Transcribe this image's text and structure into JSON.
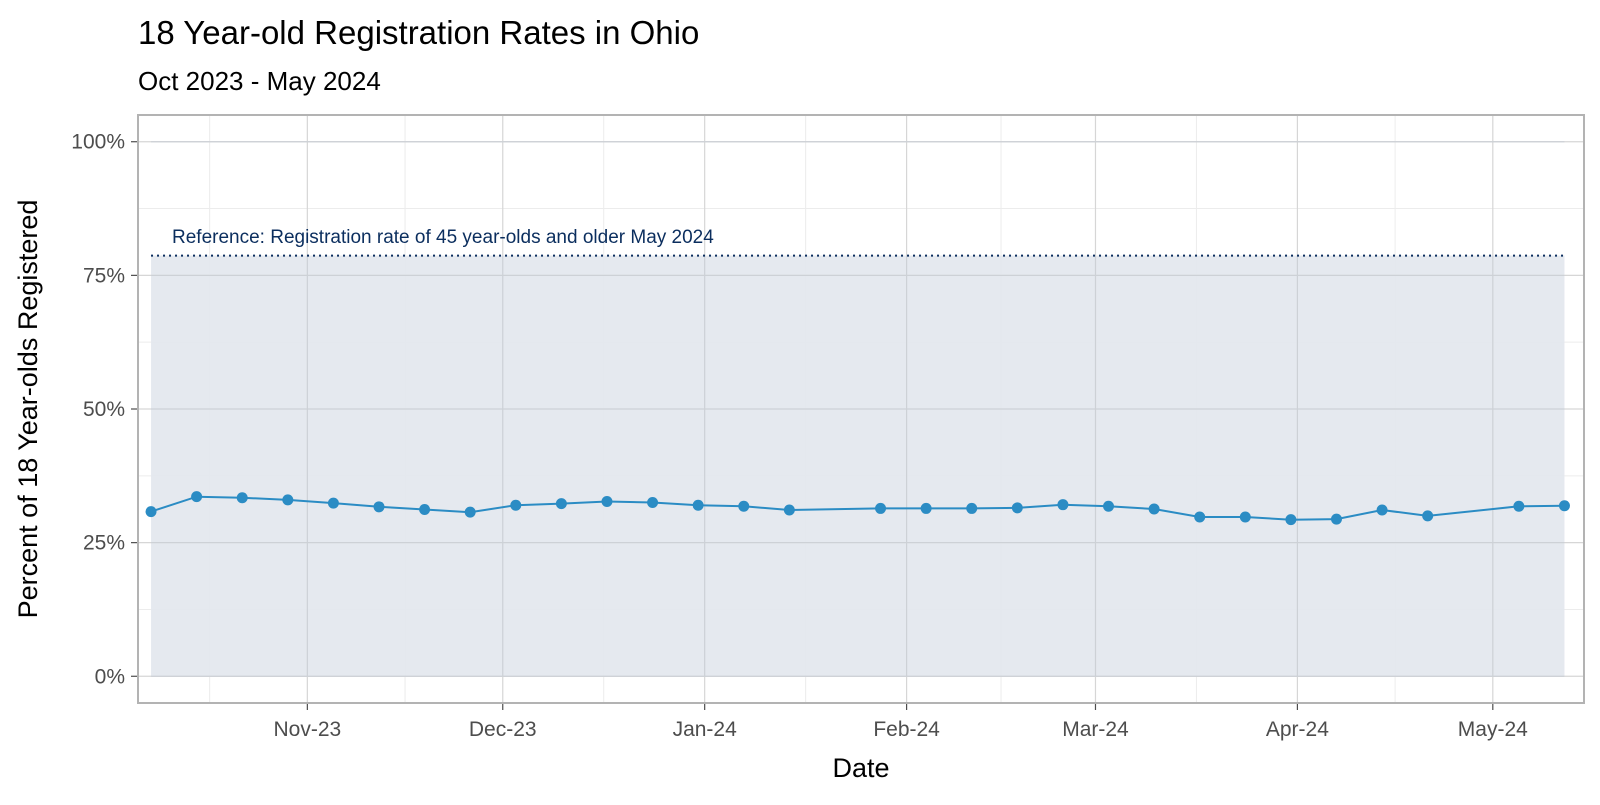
{
  "chart_data": {
    "type": "line",
    "title": "18 Year-old Registration Rates in Ohio",
    "subtitle": "Oct 2023 - May 2024",
    "xlabel": "Date",
    "ylabel": "Percent of 18 Year-olds Registered",
    "ylim": [
      -0.05,
      1.05
    ],
    "yticks": [
      {
        "value": 0,
        "label": "0%"
      },
      {
        "value": 0.25,
        "label": "25%"
      },
      {
        "value": 0.5,
        "label": "50%"
      },
      {
        "value": 0.75,
        "label": "75%"
      },
      {
        "value": 1,
        "label": "100%"
      }
    ],
    "xlim": [
      "2023-10-06",
      "2024-05-15"
    ],
    "xticks": [
      {
        "date": "2023-11-01",
        "label": "Nov-23"
      },
      {
        "date": "2023-12-01",
        "label": "Dec-23"
      },
      {
        "date": "2024-01-01",
        "label": "Jan-24"
      },
      {
        "date": "2024-02-01",
        "label": "Feb-24"
      },
      {
        "date": "2024-03-01",
        "label": "Mar-24"
      },
      {
        "date": "2024-04-01",
        "label": "Apr-24"
      },
      {
        "date": "2024-05-01",
        "label": "May-24"
      }
    ],
    "grid": true,
    "colors": {
      "series": "#2b8cc4",
      "reference": "#0b2e5e",
      "band": "#e4e8ee",
      "panel_border": "#b3b3b3"
    },
    "band": {
      "ymin": 0,
      "ymax": 0.787
    },
    "reference": {
      "value": 0.787,
      "label": "Reference: Registration rate of 45 year-olds and older May 2024"
    },
    "series": [
      {
        "x": [
          "2023-10-08",
          "2023-10-15",
          "2023-10-22",
          "2023-10-29",
          "2023-11-05",
          "2023-11-12",
          "2023-11-19",
          "2023-11-26",
          "2023-12-03",
          "2023-12-10",
          "2023-12-17",
          "2023-12-24",
          "2023-12-31",
          "2024-01-07",
          "2024-01-14",
          "2024-01-28",
          "2024-02-04",
          "2024-02-11",
          "2024-02-18",
          "2024-02-25",
          "2024-03-03",
          "2024-03-10",
          "2024-03-17",
          "2024-03-24",
          "2024-03-31",
          "2024-04-07",
          "2024-04-14",
          "2024-04-21",
          "2024-05-05",
          "2024-05-12"
        ],
        "values": [
          0.308,
          0.336,
          0.334,
          0.33,
          0.324,
          0.317,
          0.312,
          0.307,
          0.32,
          0.323,
          0.327,
          0.325,
          0.32,
          0.318,
          0.311,
          0.314,
          0.314,
          0.314,
          0.315,
          0.321,
          0.318,
          0.313,
          0.298,
          0.298,
          0.293,
          0.294,
          0.311,
          0.3,
          0.318,
          0.319
        ]
      }
    ]
  }
}
